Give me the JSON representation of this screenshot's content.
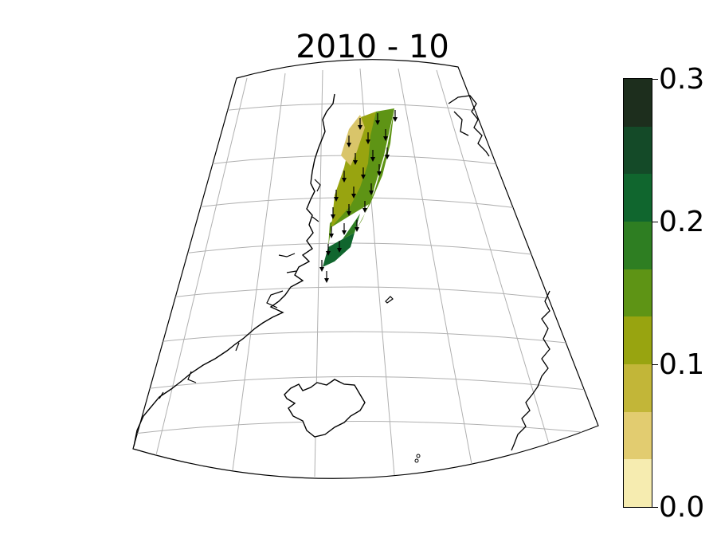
{
  "title": "2010 - 10",
  "colorbar": {
    "min": 0.0,
    "max": 0.3,
    "tick_labels": [
      "0.0",
      "0.1",
      "0.2",
      "0.3"
    ],
    "colors": [
      "#f6ecb0",
      "#e2cc70",
      "#c2b638",
      "#98a410",
      "#5e9415",
      "#2e7e22",
      "#10662e",
      "#144a28",
      "#1d2e1d"
    ]
  },
  "map": {
    "projection": "conic (Lambert-like)",
    "region": "Greenland Sea / Denmark Strait / Iceland",
    "gridlines": true,
    "field_colors": {
      "light": "#d9c56a",
      "mid": "#98a410",
      "green": "#5e9415",
      "dark": "#10662e"
    },
    "arrow_direction": "south"
  }
}
